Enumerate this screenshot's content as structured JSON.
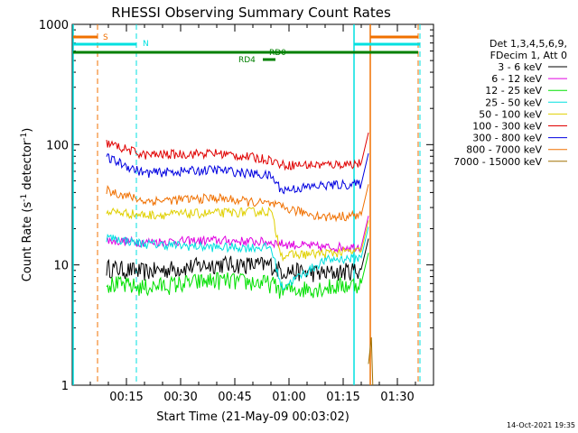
{
  "chart_data": {
    "type": "line",
    "title": "RHESSI Observing Summary Count Rates",
    "xlabel": "Start Time (21-May-09 00:03:02)",
    "ylabel": "Count Rate (s⁻¹ detector⁻¹)",
    "yscale": "log",
    "xlim_minutes": [
      0,
      100
    ],
    "ylim": [
      1,
      1000
    ],
    "x_tick_labels": [
      "00:15",
      "00:30",
      "00:45",
      "01:00",
      "01:15",
      "01:30"
    ],
    "x_tick_minutes": [
      15,
      30,
      45,
      60,
      75,
      90
    ],
    "y_tick_labels": [
      "1",
      "10",
      "100",
      "1000"
    ],
    "y_tick_values": [
      1,
      10,
      100,
      1000
    ],
    "legend_header": [
      "Det 1,3,4,5,6,9,",
      "FDecim 1, Att 0"
    ],
    "legend_placement": "right",
    "timestamp": "14-Oct-2021 19:35",
    "series": [
      {
        "name": "3 - 6 keV",
        "color": "#000000",
        "x": [
          9.5,
          20,
          40,
          55,
          58,
          70,
          80
        ],
        "y": [
          9.5,
          8.8,
          10.2,
          10,
          9,
          8.5,
          9.2
        ]
      },
      {
        "name": "6 - 12 keV",
        "color": "#e000e0",
        "x": [
          9.5,
          20,
          40,
          55,
          58,
          70,
          80
        ],
        "y": [
          16,
          15.5,
          16,
          15.5,
          15,
          14,
          14.2
        ]
      },
      {
        "name": "12 - 25 keV",
        "color": "#00e000",
        "x": [
          9.5,
          20,
          40,
          55,
          58,
          70,
          80
        ],
        "y": [
          7,
          6.5,
          7.5,
          7,
          6.2,
          6.5,
          7
        ]
      },
      {
        "name": "25 - 50 keV",
        "color": "#00e0e0",
        "x": [
          9.5,
          20,
          40,
          55,
          58,
          70,
          80
        ],
        "y": [
          17,
          15,
          14,
          14,
          6.5,
          11,
          11.5
        ]
      },
      {
        "name": "50 - 100 keV",
        "color": "#e0d000",
        "x": [
          9.5,
          20,
          40,
          55,
          58,
          70,
          80
        ],
        "y": [
          28,
          26,
          27,
          28,
          12,
          12.5,
          13
        ]
      },
      {
        "name": "100 - 300 keV",
        "color": "#e00000",
        "x": [
          9.5,
          20,
          40,
          55,
          58,
          70,
          80
        ],
        "y": [
          103,
          82,
          85,
          75,
          68,
          68,
          70
        ]
      },
      {
        "name": "300 - 800 keV",
        "color": "#0000e0",
        "x": [
          9.5,
          20,
          40,
          55,
          58,
          70,
          80
        ],
        "y": [
          78,
          58,
          62,
          55,
          42,
          46,
          47
        ]
      },
      {
        "name": "800 - 7000 keV",
        "color": "#f07000",
        "x": [
          9.5,
          20,
          40,
          55,
          58,
          70,
          80
        ],
        "y": [
          42,
          34,
          36,
          32,
          30,
          25,
          26
        ]
      },
      {
        "name": "7000 - 15000 keV",
        "color": "#a07000",
        "x": [
          82,
          82.8,
          83.2
        ],
        "y": [
          1.5,
          2.5,
          1
        ]
      }
    ],
    "annotations": [
      {
        "text": "S",
        "color": "#f07000"
      },
      {
        "text": "N",
        "color": "#00e0e0"
      },
      {
        "text": "RD0",
        "color": "#008000"
      },
      {
        "text": "RD4",
        "color": "#008000"
      }
    ]
  }
}
